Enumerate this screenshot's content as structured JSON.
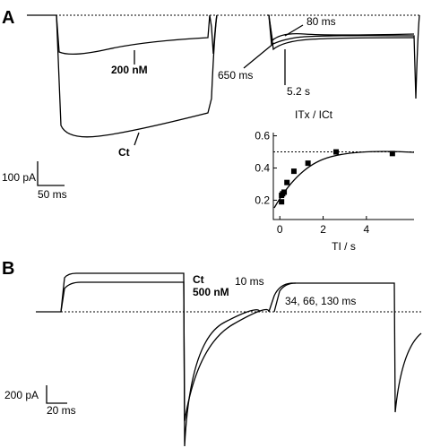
{
  "panels": {
    "a": {
      "label": "A",
      "trace_labels": [
        "200 nM",
        "Ct",
        "80 ms",
        "650 ms",
        "5.2 s"
      ],
      "scale": [
        "100 pA",
        "50 ms"
      ]
    },
    "b": {
      "label": "B",
      "trace_labels": [
        "Ct",
        "500 nM",
        "10 ms",
        "34, 66, 130 ms"
      ],
      "scale": [
        "200 pA",
        "20 ms"
      ]
    }
  },
  "chart_data": {
    "type": "scatter",
    "xlabel": "TI / s",
    "ylabel": "ITx / ICt",
    "x": [
      0.08,
      0.08,
      0.13,
      0.2,
      0.33,
      0.65,
      1.3,
      2.6,
      5.2
    ],
    "values": [
      0.19,
      0.23,
      0.24,
      0.25,
      0.31,
      0.38,
      0.43,
      0.5,
      0.49
    ],
    "color": "#000000",
    "xlim": [
      -0.3,
      6.2
    ],
    "ylim": [
      0.08,
      0.62
    ],
    "xticks": [
      0,
      2,
      4
    ],
    "yticks": [
      0.2,
      0.4,
      0.6
    ],
    "reference_line": 0.5
  }
}
